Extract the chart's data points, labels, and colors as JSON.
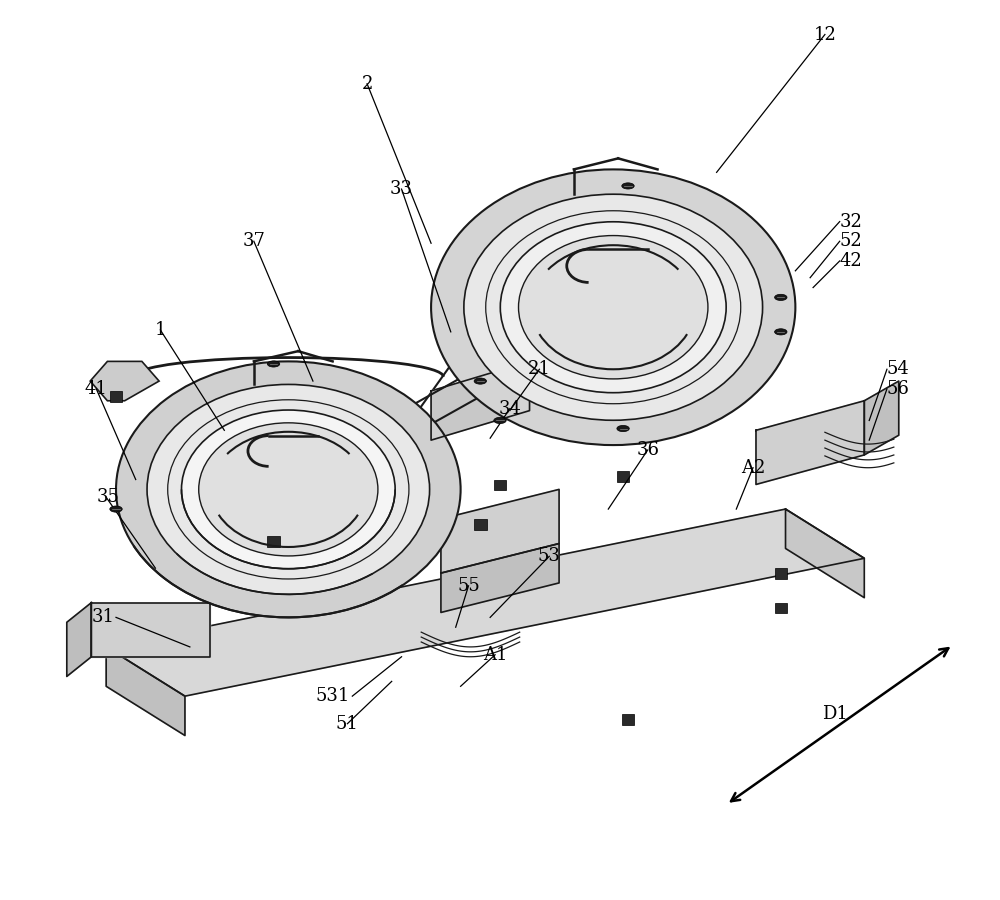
{
  "bg_color": "#ffffff",
  "line_color": "#1a1a1a",
  "fig_width": 10.0,
  "fig_height": 9.0,
  "dpi": 100,
  "font_size": 13,
  "font_family": "DejaVu Serif"
}
